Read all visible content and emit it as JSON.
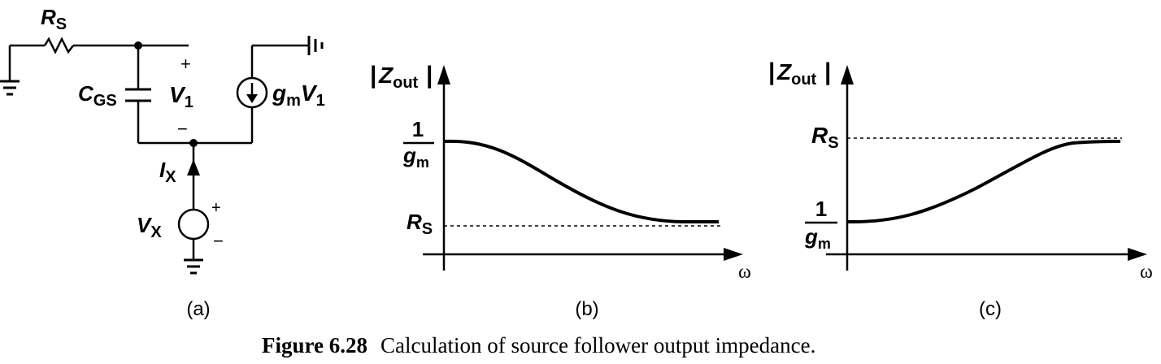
{
  "circuit": {
    "rs_main": "R",
    "rs_sub": "S",
    "cgs_main": "C",
    "cgs_sub": "GS",
    "v1_main": "V",
    "v1_sub": "1",
    "plus": "+",
    "minus": "−",
    "gm_main": "g",
    "gm_sub": "m",
    "gmv1_main": "V",
    "gmv1_sub": "1",
    "ix_main": "I",
    "ix_sub": "X",
    "vx_main": "V",
    "vx_sub": "X",
    "panel_label": "(a)"
  },
  "plot_b": {
    "ylabel_main": "Z",
    "ylabel_sub": "out",
    "bar": "|",
    "tick_high_num": "1",
    "tick_high_den_main": "g",
    "tick_high_den_sub": "m",
    "tick_low_main": "R",
    "tick_low_sub": "S",
    "xlabel": "ω",
    "panel_label": "(b)"
  },
  "plot_c": {
    "ylabel_main": "Z",
    "ylabel_sub": "out",
    "bar": "|",
    "tick_high_main": "R",
    "tick_high_sub": "S",
    "tick_low_num": "1",
    "tick_low_den_main": "g",
    "tick_low_den_sub": "m",
    "xlabel": "ω",
    "panel_label": "(c)"
  },
  "caption": {
    "label": "Figure 6.28",
    "text": "Calculation of source follower output impedance."
  }
}
